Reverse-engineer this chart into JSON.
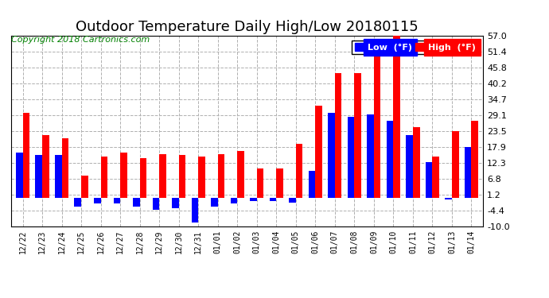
{
  "title": "Outdoor Temperature Daily High/Low 20180115",
  "copyright": "Copyright 2018 Cartronics.com",
  "legend_low": "Low  (°F)",
  "legend_high": "High  (°F)",
  "categories": [
    "12/22",
    "12/23",
    "12/24",
    "12/25",
    "12/26",
    "12/27",
    "12/28",
    "12/29",
    "12/30",
    "12/31",
    "01/01",
    "01/02",
    "01/03",
    "01/04",
    "01/05",
    "01/06",
    "01/07",
    "01/08",
    "01/09",
    "01/10",
    "01/11",
    "01/12",
    "01/13",
    "01/14"
  ],
  "high_values": [
    30.0,
    22.0,
    21.0,
    8.0,
    14.5,
    16.0,
    14.0,
    15.5,
    15.0,
    14.5,
    15.5,
    16.5,
    10.5,
    10.5,
    19.0,
    32.5,
    44.0,
    44.0,
    52.0,
    57.0,
    25.0,
    14.5,
    23.5,
    27.0
  ],
  "low_values": [
    16.0,
    15.0,
    15.0,
    -3.0,
    -2.0,
    -2.0,
    -3.0,
    -4.0,
    -3.5,
    -8.5,
    -3.0,
    -2.0,
    -1.0,
    -1.0,
    -1.5,
    9.5,
    30.0,
    28.5,
    29.5,
    27.0,
    22.0,
    12.5,
    -0.5,
    18.0
  ],
  "high_color": "#ff0000",
  "low_color": "#0000ff",
  "bg_color": "#ffffff",
  "plot_bg_color": "#ffffff",
  "grid_color": "#b0b0b0",
  "title_fontsize": 13,
  "copyright_fontsize": 8,
  "ytick_labels": [
    "-10.0",
    "-4.4",
    "1.2",
    "6.8",
    "12.3",
    "17.9",
    "23.5",
    "29.1",
    "34.7",
    "40.2",
    "45.8",
    "51.4",
    "57.0"
  ],
  "ytick_values": [
    -10.0,
    -4.4,
    1.2,
    6.8,
    12.3,
    17.9,
    23.5,
    29.1,
    34.7,
    40.2,
    45.8,
    51.4,
    57.0
  ],
  "ymin": -10.0,
  "ymax": 57.0,
  "bar_width": 0.35
}
